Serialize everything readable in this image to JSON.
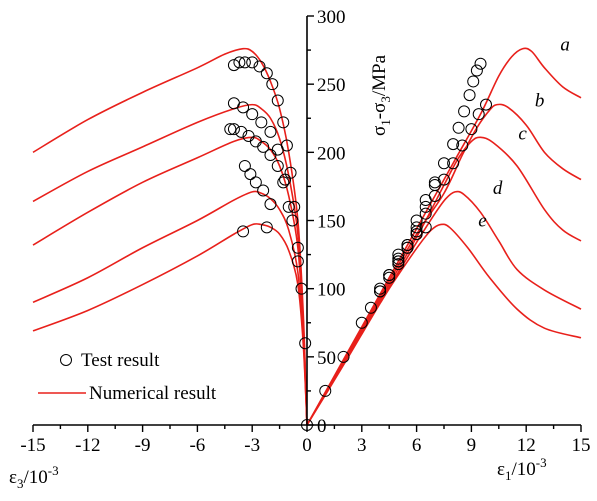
{
  "chart_data": {
    "type": "line",
    "x_axis": {
      "range": [
        -15,
        15
      ],
      "ticks": [
        -15,
        -12,
        -9,
        -6,
        -3,
        0,
        3,
        6,
        9,
        12,
        15
      ],
      "left_title": "ε3/10-3",
      "right_title": "ε1/10-3"
    },
    "y_axis": {
      "range": [
        0,
        300
      ],
      "ticks": [
        0,
        50,
        100,
        150,
        200,
        250,
        300
      ],
      "title": "σ1-σ3/MPa"
    },
    "legend": {
      "position": "bottom-left",
      "items": [
        {
          "label": "Test result",
          "marker": "open-circle",
          "color": "#000000"
        },
        {
          "label": "Numerical result",
          "marker": "line",
          "color": "#e8201b"
        }
      ]
    },
    "colors": {
      "numerical": "#e8201b",
      "test": "#000000",
      "axis": "#000000"
    },
    "numerical_series": [
      {
        "name": "a",
        "axial": [
          [
            0,
            0
          ],
          [
            2,
            48
          ],
          [
            4,
            96
          ],
          [
            6,
            144
          ],
          [
            8,
            192
          ],
          [
            9.5,
            228
          ],
          [
            10.5,
            256
          ],
          [
            11.2,
            270
          ],
          [
            11.8,
            276
          ],
          [
            12.3,
            274
          ],
          [
            13,
            262
          ],
          [
            14,
            248
          ],
          [
            15,
            240
          ]
        ],
        "lateral": [
          [
            0,
            0
          ],
          [
            -0.2,
            80
          ],
          [
            -0.5,
            150
          ],
          [
            -1,
            200
          ],
          [
            -1.5,
            232
          ],
          [
            -2,
            252
          ],
          [
            -2.5,
            266
          ],
          [
            -3,
            274
          ],
          [
            -3.5,
            276
          ],
          [
            -4.5,
            272
          ],
          [
            -6,
            262
          ],
          [
            -9,
            244
          ],
          [
            -12,
            224
          ],
          [
            -15,
            200
          ]
        ]
      },
      {
        "name": "b",
        "axial": [
          [
            0,
            0
          ],
          [
            2,
            47
          ],
          [
            4,
            94
          ],
          [
            6,
            140
          ],
          [
            7.5,
            170
          ],
          [
            8.5,
            198
          ],
          [
            9.3,
            218
          ],
          [
            10,
            231
          ],
          [
            10.4,
            235
          ],
          [
            11,
            233
          ],
          [
            12,
            220
          ],
          [
            13,
            200
          ],
          [
            14,
            188
          ],
          [
            15,
            180
          ]
        ],
        "lateral": [
          [
            0,
            0
          ],
          [
            -0.2,
            75
          ],
          [
            -0.5,
            140
          ],
          [
            -1,
            183
          ],
          [
            -1.5,
            210
          ],
          [
            -2,
            225
          ],
          [
            -2.5,
            232
          ],
          [
            -3,
            235
          ],
          [
            -4,
            232
          ],
          [
            -6,
            222
          ],
          [
            -9,
            204
          ],
          [
            -12,
            186
          ],
          [
            -15,
            164
          ]
        ]
      },
      {
        "name": "c",
        "axial": [
          [
            0,
            0
          ],
          [
            2,
            46
          ],
          [
            4,
            92
          ],
          [
            5.5,
            126
          ],
          [
            6.5,
            150
          ],
          [
            7.5,
            176
          ],
          [
            8.3,
            196
          ],
          [
            9,
            208
          ],
          [
            9.5,
            211
          ],
          [
            10.2,
            207
          ],
          [
            11.5,
            190
          ],
          [
            13,
            158
          ],
          [
            14,
            143
          ],
          [
            15,
            135
          ]
        ],
        "lateral": [
          [
            0,
            0
          ],
          [
            -0.2,
            70
          ],
          [
            -0.5,
            130
          ],
          [
            -1,
            168
          ],
          [
            -1.5,
            190
          ],
          [
            -2,
            202
          ],
          [
            -2.5,
            208
          ],
          [
            -3,
            211
          ],
          [
            -4,
            208
          ],
          [
            -6,
            196
          ],
          [
            -9,
            178
          ],
          [
            -12,
            156
          ],
          [
            -15,
            132
          ]
        ]
      },
      {
        "name": "d",
        "axial": [
          [
            0,
            0
          ],
          [
            2,
            45
          ],
          [
            3.8,
            86
          ],
          [
            5,
            112
          ],
          [
            6,
            134
          ],
          [
            7,
            155
          ],
          [
            7.6,
            166
          ],
          [
            8.1,
            171
          ],
          [
            8.6,
            169
          ],
          [
            9.5,
            156
          ],
          [
            10.5,
            135
          ],
          [
            11.5,
            114
          ],
          [
            13,
            99
          ],
          [
            15,
            85
          ]
        ],
        "lateral": [
          [
            0,
            0
          ],
          [
            -0.2,
            62
          ],
          [
            -0.5,
            112
          ],
          [
            -1,
            143
          ],
          [
            -1.5,
            158
          ],
          [
            -2,
            166
          ],
          [
            -2.5,
            170
          ],
          [
            -3,
            171
          ],
          [
            -4,
            165
          ],
          [
            -6,
            150
          ],
          [
            -9,
            130
          ],
          [
            -12,
            108
          ],
          [
            -15,
            90
          ]
        ]
      },
      {
        "name": "e",
        "axial": [
          [
            0,
            0
          ],
          [
            2,
            44
          ],
          [
            3.5,
            78
          ],
          [
            4.5,
            100
          ],
          [
            5.5,
            120
          ],
          [
            6.3,
            135
          ],
          [
            6.8,
            143
          ],
          [
            7.3,
            147
          ],
          [
            7.8,
            145
          ],
          [
            8.8,
            130
          ],
          [
            10,
            108
          ],
          [
            11.5,
            85
          ],
          [
            13,
            71
          ],
          [
            15,
            64
          ]
        ],
        "lateral": [
          [
            0,
            0
          ],
          [
            -0.2,
            58
          ],
          [
            -0.5,
            103
          ],
          [
            -1,
            128
          ],
          [
            -1.5,
            140
          ],
          [
            -2,
            145
          ],
          [
            -2.5,
            147
          ],
          [
            -3,
            147
          ],
          [
            -4,
            140
          ],
          [
            -6,
            124
          ],
          [
            -9,
            103
          ],
          [
            -12,
            84
          ],
          [
            -15,
            69
          ]
        ]
      }
    ],
    "test_series": [
      {
        "name": "a",
        "axial": [
          [
            0,
            0
          ],
          [
            1,
            25
          ],
          [
            2,
            50
          ],
          [
            3,
            75
          ],
          [
            4,
            100
          ],
          [
            5,
            125
          ],
          [
            6,
            150
          ],
          [
            6.5,
            165
          ],
          [
            7,
            178
          ],
          [
            7.5,
            192
          ],
          [
            8,
            206
          ],
          [
            8.3,
            218
          ],
          [
            8.6,
            230
          ],
          [
            8.9,
            242
          ],
          [
            9.1,
            252
          ],
          [
            9.3,
            260
          ],
          [
            9.5,
            265
          ]
        ],
        "lateral": [
          [
            -0.1,
            60
          ],
          [
            -0.3,
            100
          ],
          [
            -0.5,
            130
          ],
          [
            -0.7,
            160
          ],
          [
            -0.9,
            185
          ],
          [
            -1.1,
            205
          ],
          [
            -1.3,
            222
          ],
          [
            -1.6,
            238
          ],
          [
            -1.9,
            250
          ],
          [
            -2.2,
            258
          ],
          [
            -2.6,
            263
          ],
          [
            -3.0,
            266
          ],
          [
            -3.4,
            266
          ],
          [
            -3.7,
            266
          ],
          [
            -4.0,
            264
          ]
        ]
      },
      {
        "name": "b",
        "axial": [
          [
            5,
            118
          ],
          [
            5.5,
            130
          ],
          [
            6,
            142
          ],
          [
            6.5,
            155
          ],
          [
            7,
            168
          ],
          [
            7.5,
            180
          ],
          [
            8,
            192
          ],
          [
            8.5,
            205
          ],
          [
            9,
            217
          ],
          [
            9.4,
            228
          ],
          [
            9.8,
            235
          ]
        ],
        "lateral": [
          [
            -0.5,
            120
          ],
          [
            -0.8,
            150
          ],
          [
            -1.2,
            180
          ],
          [
            -1.6,
            202
          ],
          [
            -2.0,
            215
          ],
          [
            -2.5,
            222
          ],
          [
            -3.0,
            228
          ],
          [
            -3.5,
            233
          ],
          [
            -4.0,
            236
          ]
        ]
      },
      {
        "name": "c",
        "axial": [
          [
            4.5,
            108
          ],
          [
            5,
            120
          ],
          [
            5.5,
            132
          ],
          [
            6,
            145
          ],
          [
            6.5,
            160
          ],
          [
            7,
            176
          ]
        ],
        "lateral": [
          [
            -1.0,
            160
          ],
          [
            -1.3,
            178
          ],
          [
            -1.6,
            190
          ],
          [
            -2.0,
            198
          ],
          [
            -2.4,
            204
          ],
          [
            -2.8,
            208
          ],
          [
            -3.2,
            212
          ],
          [
            -3.6,
            215
          ],
          [
            -4.0,
            217
          ],
          [
            -4.2,
            217
          ]
        ]
      },
      {
        "name": "d",
        "axial": [
          [
            4,
            98
          ],
          [
            4.5,
            110
          ],
          [
            5,
            122
          ],
          [
            5.5,
            132
          ],
          [
            6,
            140
          ],
          [
            6.5,
            145
          ]
        ],
        "lateral": [
          [
            -2.0,
            162
          ],
          [
            -2.4,
            172
          ],
          [
            -2.8,
            178
          ],
          [
            -3.1,
            184
          ],
          [
            -3.4,
            190
          ]
        ]
      },
      {
        "name": "e",
        "axial": [
          [
            3.5,
            86
          ],
          [
            4,
            98
          ],
          [
            4.5,
            110
          ],
          [
            5,
            120
          ],
          [
            5.5,
            130
          ],
          [
            6,
            140
          ]
        ],
        "lateral": [
          [
            -2.2,
            145
          ],
          [
            -3.5,
            142
          ]
        ]
      }
    ]
  }
}
